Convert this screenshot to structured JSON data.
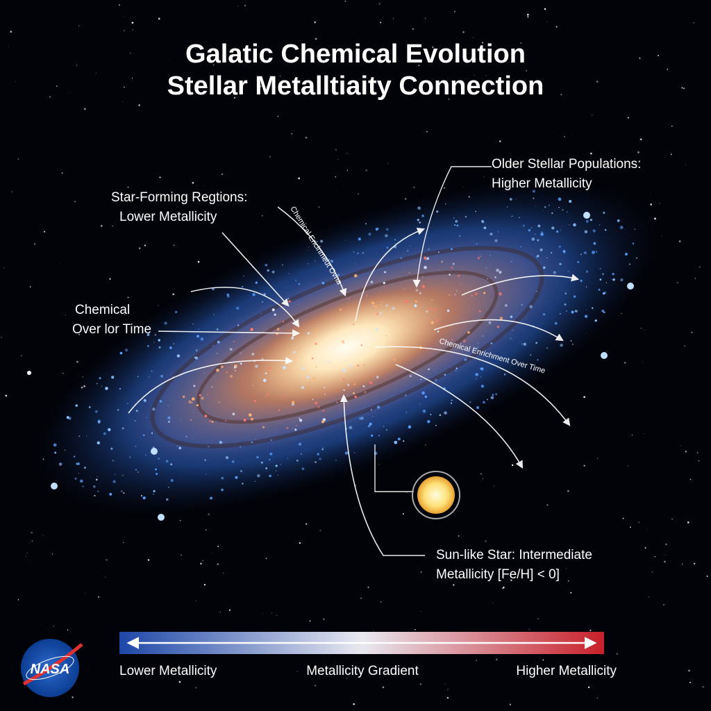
{
  "title": {
    "line1": "Galatic Chemical Evolution",
    "line2": "Stellar Metalltiaity Connection"
  },
  "labels": {
    "star_forming": {
      "line1": "Star-Forming Regtions:",
      "line2": "Lower Metallicity"
    },
    "older_populations": {
      "line1": "Older Stellar Populations:",
      "line2": "Higher Metallicity"
    },
    "chemical_left": {
      "line1": "Chemical",
      "line2": "Over lor Time"
    },
    "enrichment_upper": "Chemical Ericlnmeut Ovna",
    "enrichment_right": "Chemical Enrichment Over Time",
    "sun_like": {
      "line1": "Sun-like Star: Intermediate",
      "line2": "Metallicity [Fe/H] < 0]"
    }
  },
  "gradient_bar": {
    "left": "Lower Metallicity",
    "center": "Metallicity Gradient",
    "right": "Higher Metallicity"
  },
  "logo": "NASA"
}
